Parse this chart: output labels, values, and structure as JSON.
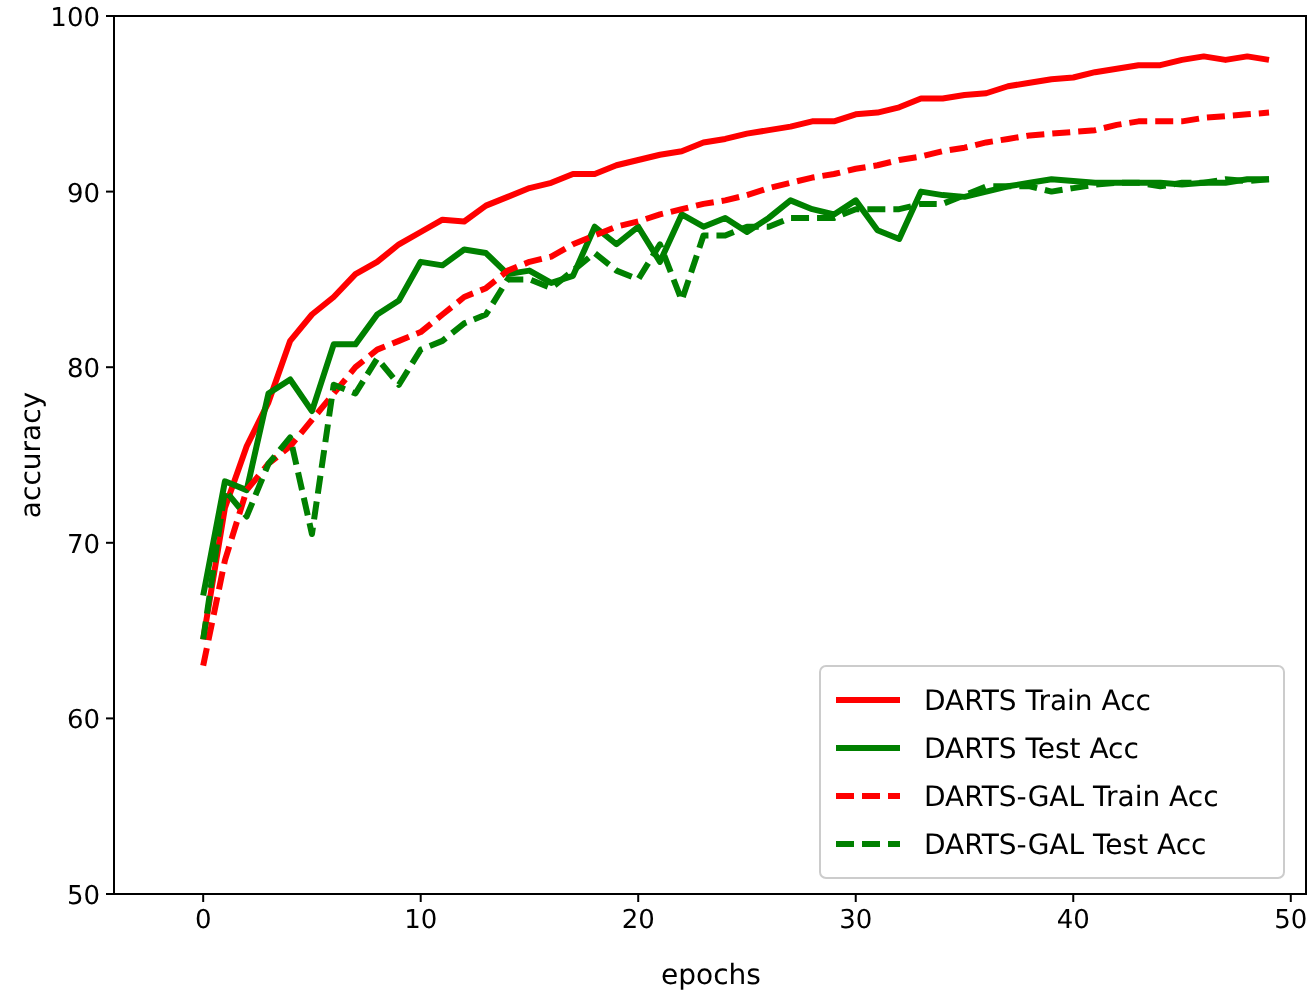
{
  "chart_data": {
    "type": "line",
    "xlabel": "epochs",
    "ylabel": "accuracy",
    "x": [
      0,
      1,
      2,
      3,
      4,
      5,
      6,
      7,
      8,
      9,
      10,
      11,
      12,
      13,
      14,
      15,
      16,
      17,
      18,
      19,
      20,
      21,
      22,
      23,
      24,
      25,
      26,
      27,
      28,
      29,
      30,
      31,
      32,
      33,
      34,
      35,
      36,
      37,
      38,
      39,
      40,
      41,
      42,
      43,
      44,
      45,
      46,
      47,
      48,
      49
    ],
    "xlim": [
      -4.1,
      50.7
    ],
    "xticks": [
      0,
      10,
      20,
      30,
      40,
      50
    ],
    "ylim": [
      50,
      100
    ],
    "yticks": [
      50,
      60,
      70,
      80,
      90,
      100
    ],
    "grid": false,
    "legend": "bottom right",
    "marker": "none",
    "series": [
      {
        "name": "DARTS Train Acc",
        "color": "#ff0000",
        "line_style": "solid",
        "values": [
          64.5,
          72,
          75.5,
          78,
          81.5,
          83,
          84,
          85.3,
          86,
          87,
          87.7,
          88.4,
          88.3,
          89.2,
          89.7,
          90.2,
          90.5,
          91,
          91,
          91.5,
          91.8,
          92.1,
          92.3,
          92.8,
          93,
          93.3,
          93.5,
          93.7,
          94,
          94,
          94.4,
          94.5,
          94.8,
          95.3,
          95.3,
          95.5,
          95.6,
          96,
          96.2,
          96.4,
          96.5,
          96.8,
          97,
          97.2,
          97.2,
          97.5,
          97.7,
          97.5,
          97.7,
          97.5
        ]
      },
      {
        "name": "DARTS Test Acc",
        "color": "#008000",
        "line_style": "solid",
        "values": [
          67,
          73.5,
          73,
          78.5,
          79.3,
          77.5,
          81.3,
          81.3,
          83,
          83.8,
          86,
          85.8,
          86.7,
          86.5,
          85.3,
          85.5,
          84.8,
          85.2,
          88,
          87,
          88,
          86,
          88.7,
          88,
          88.5,
          87.7,
          88.5,
          89.5,
          89,
          88.7,
          89.5,
          87.8,
          87.3,
          90,
          89.8,
          89.7,
          90,
          90.3,
          90.5,
          90.7,
          90.6,
          90.5,
          90.5,
          90.5,
          90.5,
          90.4,
          90.5,
          90.5,
          90.7,
          90.7
        ]
      },
      {
        "name": "DARTS-GAL Train Acc",
        "color": "#ff0000",
        "line_style": "dashed",
        "values": [
          63,
          69,
          73,
          74.5,
          75.5,
          77,
          78.5,
          80,
          81,
          81.5,
          82,
          83,
          84,
          84.5,
          85.5,
          86,
          86.3,
          87,
          87.5,
          88,
          88.3,
          88.7,
          89,
          89.3,
          89.5,
          89.8,
          90.2,
          90.5,
          90.8,
          91,
          91.3,
          91.5,
          91.8,
          92,
          92.3,
          92.5,
          92.8,
          93,
          93.2,
          93.3,
          93.4,
          93.5,
          93.8,
          94,
          94,
          94,
          94.2,
          94.3,
          94.4,
          94.5
        ]
      },
      {
        "name": "DARTS-GAL Test Acc",
        "color": "#008000",
        "line_style": "dashed",
        "values": [
          64.5,
          73,
          71.5,
          74.5,
          76,
          70.5,
          79,
          78.5,
          80.5,
          79,
          81,
          81.5,
          82.5,
          83,
          85,
          85,
          84.5,
          85.5,
          86.5,
          85.5,
          85,
          87,
          83.8,
          87.5,
          87.5,
          88,
          88,
          88.5,
          88.5,
          88.5,
          89,
          89,
          89,
          89.3,
          89.3,
          89.8,
          90.3,
          90.3,
          90.3,
          90,
          90.2,
          90.4,
          90.5,
          90.5,
          90.3,
          90.5,
          90.5,
          90.7,
          90.6,
          90.7
        ]
      }
    ]
  }
}
